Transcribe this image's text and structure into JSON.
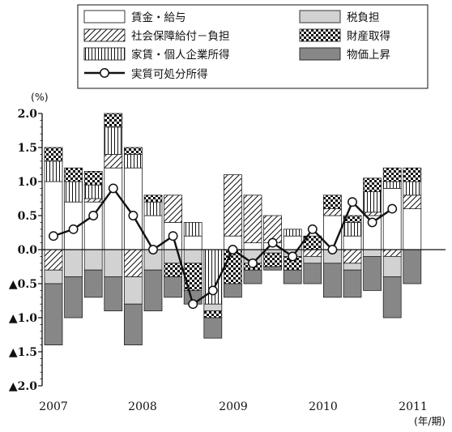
{
  "chart_data": {
    "type": "bar",
    "subtype": "stacked-bar-with-line",
    "y_unit": "(%)",
    "x_unit": "(年/期)",
    "ylim": [
      -2.0,
      2.0
    ],
    "y_ticks": [
      "2.0",
      "1.5",
      "1.0",
      "0.5",
      "0.0",
      "▲0.5",
      "▲1.0",
      "▲1.5",
      "▲2.0"
    ],
    "x_ticks": [
      "2007",
      "2008",
      "2009",
      "2010",
      "2011"
    ],
    "categories": [
      "2007Q1",
      "2007Q2",
      "2007Q3",
      "2007Q4",
      "2008Q1",
      "2008Q2",
      "2008Q3",
      "2008Q4",
      "2009Q1",
      "2009Q2",
      "2009Q3",
      "2009Q4",
      "2010Q1",
      "2010Q2",
      "2010Q3",
      "2010Q4",
      "2011Q1",
      "2011Q2",
      "2011Q3"
    ],
    "series": [
      {
        "name": "賃金・給与",
        "pattern": "blank",
        "values": [
          1.0,
          0.7,
          0.7,
          1.2,
          1.2,
          0.5,
          0.4,
          0.2,
          0.0,
          0.2,
          0.1,
          0.1,
          0.2,
          0.0,
          0.5,
          0.2,
          0.5,
          0.9,
          0.6
        ]
      },
      {
        "name": "社会保障給付－負担",
        "pattern": "diagonal",
        "values": [
          -0.3,
          0.0,
          0.05,
          0.2,
          -0.4,
          0.0,
          0.4,
          0.0,
          0.0,
          0.9,
          0.7,
          0.4,
          0.0,
          -0.1,
          0.1,
          -0.2,
          0.05,
          -0.1,
          0.2
        ]
      },
      {
        "name": "家賃・個人企業所得",
        "pattern": "vertical",
        "values": [
          0.3,
          0.3,
          0.2,
          0.4,
          0.2,
          0.2,
          0.0,
          0.2,
          -0.8,
          0.0,
          0.0,
          0.0,
          0.1,
          0.0,
          0.0,
          0.2,
          0.3,
          0.1,
          0.2
        ]
      },
      {
        "name": "税負担",
        "pattern": "light",
        "values": [
          -0.2,
          -0.4,
          -0.3,
          -0.4,
          -0.4,
          -0.3,
          -0.2,
          -0.2,
          -0.1,
          0.0,
          -0.2,
          -0.05,
          -0.1,
          -0.1,
          -0.2,
          -0.1,
          -0.1,
          -0.3,
          0.0
        ]
      },
      {
        "name": "財産取得",
        "pattern": "checker",
        "values": [
          0.2,
          0.2,
          0.2,
          0.2,
          0.1,
          0.1,
          -0.2,
          -0.4,
          -0.1,
          -0.5,
          -0.1,
          -0.2,
          -0.2,
          0.2,
          0.2,
          0.1,
          0.2,
          0.2,
          0.2
        ]
      },
      {
        "name": "物価上昇",
        "pattern": "dark",
        "values": [
          -0.9,
          -0.6,
          -0.4,
          -0.5,
          -0.6,
          -0.6,
          -0.3,
          -0.2,
          -0.3,
          -0.2,
          -0.2,
          -0.05,
          -0.2,
          -0.3,
          -0.5,
          -0.4,
          -0.5,
          -0.6,
          -0.5
        ]
      }
    ],
    "line": {
      "name": "実質可処分所得",
      "values": [
        0.2,
        0.3,
        0.5,
        0.9,
        0.5,
        0.0,
        0.2,
        -0.8,
        -0.6,
        0.0,
        -0.2,
        0.1,
        -0.1,
        0.3,
        0.0,
        0.7,
        0.4,
        0.6,
        null
      ]
    },
    "legend_placement": "top"
  }
}
